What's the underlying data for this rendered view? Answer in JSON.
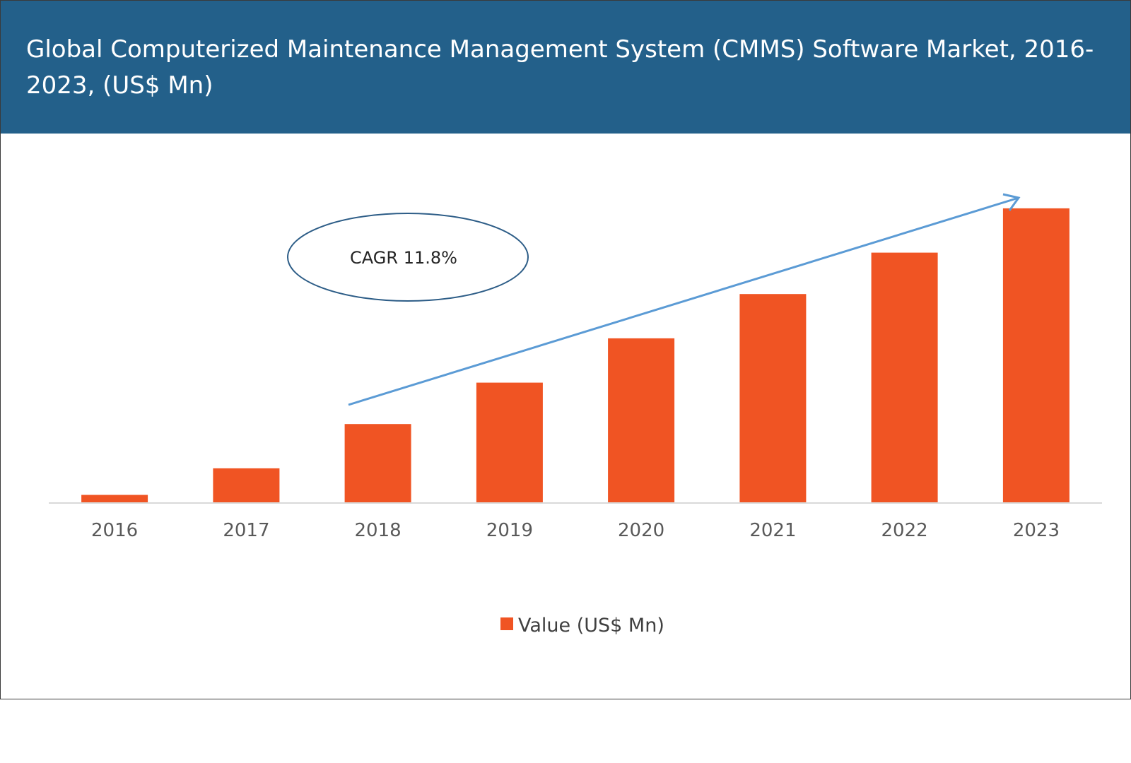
{
  "chart_data": {
    "type": "bar",
    "title": "Global Computerized Maintenance Management System (CMMS) Software Market, 2016-2023, (US$ Mn)",
    "categories": [
      "2016",
      "2017",
      "2018",
      "2019",
      "2020",
      "2021",
      "2022",
      "2023"
    ],
    "series": [
      {
        "name": "Value (US$ Mn)",
        "values": [
          2.5,
          11.5,
          26.5,
          40.5,
          55.5,
          70.5,
          84.5,
          99.5
        ]
      }
    ],
    "value_unit": "relative (no numeric axis printed)",
    "ylim": [
      0,
      110
    ],
    "grid": false,
    "legend": "bottom-center",
    "annotation": {
      "text": "CAGR 11.8%",
      "shape": "ellipse"
    },
    "trend_arrow": true,
    "colors": {
      "bar": "#f05423",
      "header": "#23608a",
      "arrow": "#5b9bd5",
      "ellipse": "#2d5d87"
    }
  }
}
